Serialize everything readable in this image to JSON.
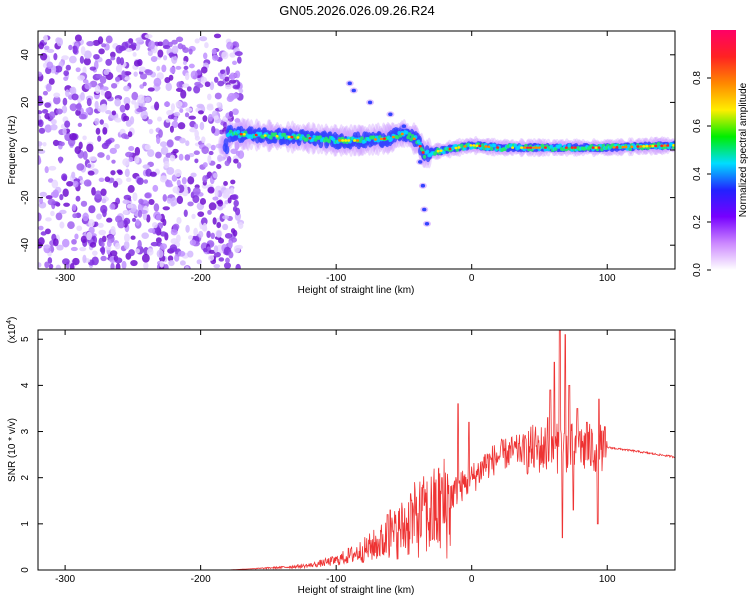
{
  "title": "GN05.2026.026.09.26.R24",
  "chart_data": [
    {
      "type": "heatmap",
      "title": "GN05.2026.026.09.26.R24",
      "xlabel": "Height of straight line (km)",
      "ylabel": "Frequency (Hz)",
      "xlim": [
        -320,
        150
      ],
      "ylim": [
        -50,
        50
      ],
      "xticks": [
        -300,
        -200,
        -100,
        0,
        100
      ],
      "yticks": [
        40,
        20,
        0,
        -20,
        -40
      ],
      "colorbar": {
        "label": "Normalized spectral amplitude",
        "range": [
          0.0,
          1.0
        ],
        "ticks": [
          0.0,
          0.2,
          0.4,
          0.6,
          0.8
        ],
        "colors": [
          "#ffffff",
          "#cc88ff",
          "#7700ff",
          "#2222ff",
          "#00ddff",
          "#00ee00",
          "#ffee00",
          "#ff8800",
          "#ff2222",
          "#ff0066"
        ]
      },
      "regions": [
        {
          "name": "noise",
          "x": [
            -320,
            -170
          ],
          "f": [
            -50,
            48
          ],
          "amp": [
            0.05,
            0.3
          ]
        },
        {
          "name": "signal-band",
          "x": [
            -180,
            150
          ],
          "center_hz": [
            [
              -180,
              7
            ],
            [
              -150,
              6
            ],
            [
              -120,
              5
            ],
            [
              -100,
              4
            ],
            [
              -80,
              4
            ],
            [
              -60,
              5
            ],
            [
              -50,
              7
            ],
            [
              -40,
              4
            ],
            [
              -35,
              -2
            ],
            [
              -30,
              -1
            ],
            [
              -20,
              0
            ],
            [
              -10,
              1
            ],
            [
              0,
              2
            ],
            [
              20,
              1
            ],
            [
              50,
              1
            ],
            [
              70,
              1
            ],
            [
              100,
              1
            ],
            [
              150,
              2
            ]
          ]
        },
        {
          "name": "upper-spur",
          "points": [
            [
              -90,
              28
            ],
            [
              -87,
              25
            ],
            [
              -75,
              20
            ],
            [
              -60,
              15
            ],
            [
              -50,
              10
            ]
          ]
        },
        {
          "name": "lower-spur",
          "points": [
            [
              -38,
              -5
            ],
            [
              -36,
              -15
            ],
            [
              -35,
              -25
            ],
            [
              -33,
              -31
            ]
          ]
        }
      ]
    },
    {
      "type": "line",
      "title": "",
      "xlabel": "Height of straight line (km)",
      "ylabel": "SNR (10 * v/v)",
      "scale_label_prefix": "(x10",
      "scale_label_exp": "4",
      "scale_label_suffix": ")",
      "xlim": [
        -320,
        150
      ],
      "ylim": [
        0,
        5.2
      ],
      "xticks": [
        -300,
        -200,
        -100,
        0,
        100
      ],
      "yticks": [
        0,
        1,
        2,
        3,
        4,
        5
      ],
      "color": "#ee3333",
      "series": [
        {
          "name": "SNR",
          "envelope": [
            [
              -320,
              0.0
            ],
            [
              -180,
              0.0
            ],
            [
              -160,
              0.03
            ],
            [
              -140,
              0.06
            ],
            [
              -120,
              0.1
            ],
            [
              -100,
              0.22
            ],
            [
              -80,
              0.45
            ],
            [
              -60,
              0.75
            ],
            [
              -50,
              1.0
            ],
            [
              -40,
              1.2
            ],
            [
              -30,
              1.3
            ],
            [
              -20,
              1.5
            ],
            [
              -10,
              1.8
            ],
            [
              0,
              2.0
            ],
            [
              10,
              2.3
            ],
            [
              20,
              2.5
            ],
            [
              30,
              2.6
            ],
            [
              40,
              2.65
            ],
            [
              55,
              2.68
            ],
            [
              70,
              2.7
            ],
            [
              90,
              2.68
            ],
            [
              100,
              2.66
            ],
            [
              120,
              2.58
            ],
            [
              150,
              2.45
            ]
          ],
          "peaks": [
            [
              -62,
              1.2
            ],
            [
              -60,
              1.3
            ],
            [
              -45,
              1.65
            ],
            [
              -35,
              1.4
            ],
            [
              -22,
              2.0
            ],
            [
              -10,
              3.6
            ],
            [
              -2,
              3.2
            ],
            [
              10,
              2.5
            ],
            [
              56,
              3.3
            ],
            [
              58,
              3.9
            ],
            [
              61,
              4.5
            ],
            [
              65,
              5.2
            ],
            [
              67,
              0.7
            ],
            [
              69,
              5.1
            ],
            [
              72,
              4.0
            ],
            [
              75,
              1.3
            ],
            [
              78,
              3.5
            ],
            [
              80,
              3.0
            ],
            [
              85,
              3.2
            ],
            [
              93,
              1.0
            ],
            [
              94,
              3.7
            ]
          ]
        }
      ]
    }
  ]
}
